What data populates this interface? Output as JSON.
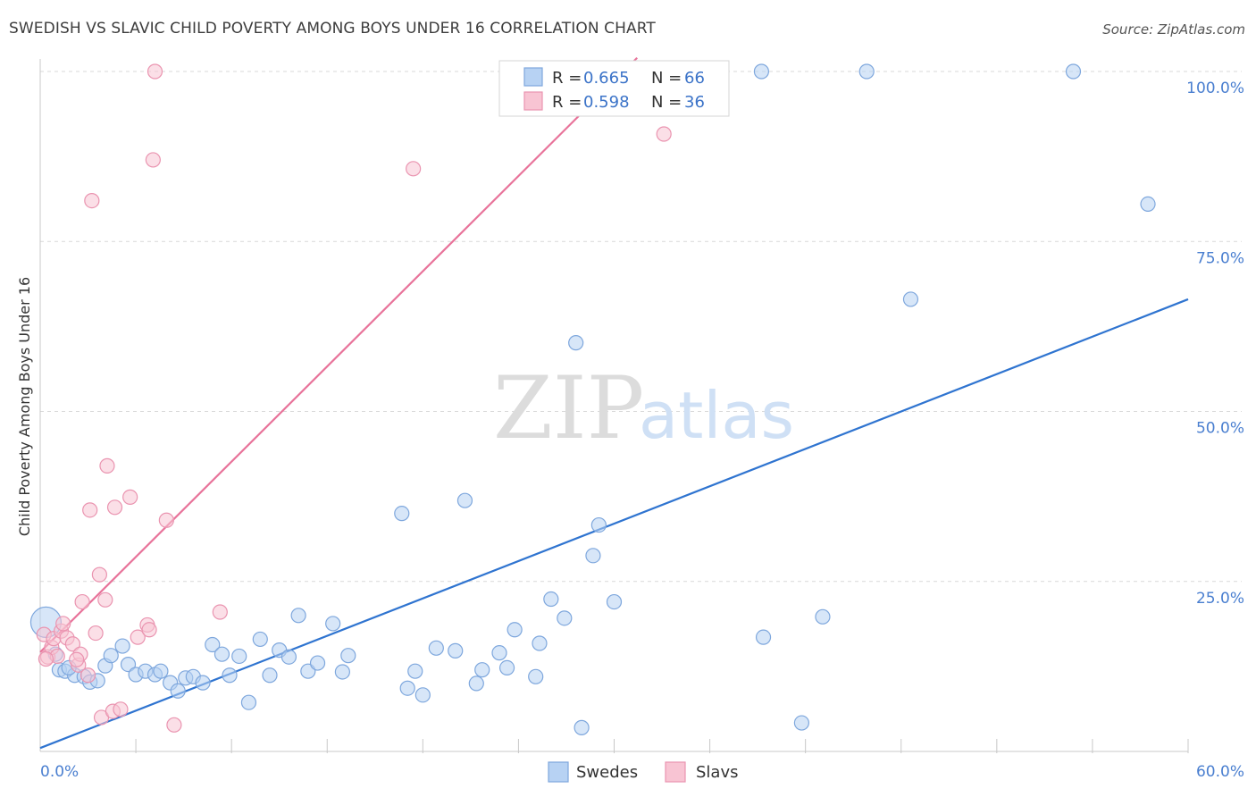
{
  "title": "SWEDISH VS SLAVIC CHILD POVERTY AMONG BOYS UNDER 16 CORRELATION CHART",
  "source": "Source: ZipAtlas.com",
  "watermark": {
    "zip": "ZIP",
    "atlas": "atlas"
  },
  "legend_top": [
    {
      "r_label": "R = ",
      "r_value": "0.665",
      "n_label": "N = ",
      "n_value": "66"
    },
    {
      "r_label": "R = ",
      "r_value": "0.598",
      "n_label": "N = ",
      "n_value": "36"
    }
  ],
  "legend_bottom": [
    "Swedes",
    "Slavs"
  ],
  "colors": {
    "swedes_fill": "#b7d2f3",
    "swedes_stroke": "#7ea7dd",
    "swedes_line": "#2f74d0",
    "slavs_fill": "#f8c4d3",
    "slavs_stroke": "#ea94b0",
    "slavs_line": "#e8739a",
    "axis_label": "#4a7fd0",
    "grid": "#d9d9d9"
  },
  "chart_data": {
    "type": "scatter",
    "title": "SWEDISH VS SLAVIC CHILD POVERTY AMONG BOYS UNDER 16 CORRELATION CHART",
    "xlabel": "",
    "ylabel": "Child Poverty Among Boys Under 16",
    "xlim": [
      0,
      60
    ],
    "ylim": [
      0,
      100
    ],
    "x_tick_labels": [
      "0.0%",
      "60.0%"
    ],
    "y_tick_labels": [
      "25.0%",
      "50.0%",
      "75.0%",
      "100.0%"
    ],
    "y_ticks": [
      25,
      50,
      75,
      100
    ],
    "grid": true,
    "legend_position": "top-center",
    "series": [
      {
        "name": "Swedes",
        "r": 0.665,
        "n": 66,
        "trend": {
          "x": [
            0,
            60
          ],
          "y": [
            0.5,
            66.5
          ]
        },
        "points": [
          {
            "x": 0.3,
            "y": 19.0,
            "big": true
          },
          {
            "x": 0.8,
            "y": 14.3
          },
          {
            "x": 1.0,
            "y": 12.0
          },
          {
            "x": 1.3,
            "y": 11.8
          },
          {
            "x": 1.8,
            "y": 11.2
          },
          {
            "x": 2.3,
            "y": 11.0
          },
          {
            "x": 2.6,
            "y": 10.2
          },
          {
            "x": 3.0,
            "y": 10.4
          },
          {
            "x": 3.4,
            "y": 12.6
          },
          {
            "x": 3.7,
            "y": 14.1
          },
          {
            "x": 4.3,
            "y": 15.5
          },
          {
            "x": 4.6,
            "y": 12.8
          },
          {
            "x": 5.0,
            "y": 11.3
          },
          {
            "x": 5.5,
            "y": 11.8
          },
          {
            "x": 6.0,
            "y": 11.3
          },
          {
            "x": 6.3,
            "y": 11.8
          },
          {
            "x": 6.8,
            "y": 10.1
          },
          {
            "x": 7.2,
            "y": 8.9
          },
          {
            "x": 7.6,
            "y": 10.8
          },
          {
            "x": 8.0,
            "y": 11.0
          },
          {
            "x": 8.5,
            "y": 10.1
          },
          {
            "x": 9.0,
            "y": 15.7
          },
          {
            "x": 9.5,
            "y": 14.3
          },
          {
            "x": 9.9,
            "y": 11.2
          },
          {
            "x": 10.4,
            "y": 14.0
          },
          {
            "x": 10.9,
            "y": 7.2
          },
          {
            "x": 11.5,
            "y": 16.5
          },
          {
            "x": 12.0,
            "y": 11.2
          },
          {
            "x": 12.5,
            "y": 14.9
          },
          {
            "x": 13.0,
            "y": 13.9
          },
          {
            "x": 13.5,
            "y": 20.0
          },
          {
            "x": 14.0,
            "y": 11.8
          },
          {
            "x": 14.5,
            "y": 13.0
          },
          {
            "x": 15.3,
            "y": 18.8
          },
          {
            "x": 15.8,
            "y": 11.7
          },
          {
            "x": 16.1,
            "y": 14.1
          },
          {
            "x": 18.9,
            "y": 35.0
          },
          {
            "x": 19.2,
            "y": 9.3
          },
          {
            "x": 19.6,
            "y": 11.8
          },
          {
            "x": 20.0,
            "y": 8.3
          },
          {
            "x": 20.7,
            "y": 15.2
          },
          {
            "x": 21.7,
            "y": 14.8
          },
          {
            "x": 22.2,
            "y": 36.9
          },
          {
            "x": 22.8,
            "y": 10.0
          },
          {
            "x": 23.1,
            "y": 12.0
          },
          {
            "x": 24.0,
            "y": 14.5
          },
          {
            "x": 24.4,
            "y": 12.3
          },
          {
            "x": 24.8,
            "y": 17.9
          },
          {
            "x": 25.9,
            "y": 11.0
          },
          {
            "x": 26.1,
            "y": 15.9
          },
          {
            "x": 26.7,
            "y": 22.4
          },
          {
            "x": 27.4,
            "y": 19.6
          },
          {
            "x": 28.0,
            "y": 60.1
          },
          {
            "x": 28.3,
            "y": 3.5
          },
          {
            "x": 28.9,
            "y": 28.8
          },
          {
            "x": 29.2,
            "y": 33.3
          },
          {
            "x": 30.0,
            "y": 22.0
          },
          {
            "x": 37.7,
            "y": 100.0
          },
          {
            "x": 37.8,
            "y": 16.8
          },
          {
            "x": 39.8,
            "y": 4.2
          },
          {
            "x": 40.9,
            "y": 19.8
          },
          {
            "x": 43.2,
            "y": 100.0
          },
          {
            "x": 45.5,
            "y": 66.5
          },
          {
            "x": 54.0,
            "y": 100.0
          },
          {
            "x": 57.9,
            "y": 80.5
          },
          {
            "x": 1.5,
            "y": 12.3
          }
        ]
      },
      {
        "name": "Slavs",
        "r": 0.598,
        "n": 36,
        "trend": {
          "x": [
            0,
            31.2
          ],
          "y": [
            14.6,
            102.0
          ]
        },
        "points": [
          {
            "x": 0.2,
            "y": 17.2
          },
          {
            "x": 0.4,
            "y": 13.9
          },
          {
            "x": 0.6,
            "y": 15.3
          },
          {
            "x": 0.7,
            "y": 16.6
          },
          {
            "x": 0.9,
            "y": 14.0
          },
          {
            "x": 1.1,
            "y": 17.7
          },
          {
            "x": 1.2,
            "y": 18.8
          },
          {
            "x": 1.4,
            "y": 16.7
          },
          {
            "x": 1.7,
            "y": 15.8
          },
          {
            "x": 2.0,
            "y": 12.7
          },
          {
            "x": 2.1,
            "y": 14.3
          },
          {
            "x": 2.2,
            "y": 22.0
          },
          {
            "x": 2.5,
            "y": 11.2
          },
          {
            "x": 2.6,
            "y": 35.5
          },
          {
            "x": 2.7,
            "y": 81.0
          },
          {
            "x": 2.9,
            "y": 17.4
          },
          {
            "x": 3.1,
            "y": 26.0
          },
          {
            "x": 3.2,
            "y": 5.0
          },
          {
            "x": 3.4,
            "y": 22.3
          },
          {
            "x": 3.5,
            "y": 42.0
          },
          {
            "x": 3.8,
            "y": 5.9
          },
          {
            "x": 3.9,
            "y": 35.9
          },
          {
            "x": 4.2,
            "y": 6.2
          },
          {
            "x": 4.7,
            "y": 37.4
          },
          {
            "x": 5.1,
            "y": 16.8
          },
          {
            "x": 5.6,
            "y": 18.6
          },
          {
            "x": 5.7,
            "y": 17.9
          },
          {
            "x": 5.9,
            "y": 87.0
          },
          {
            "x": 6.0,
            "y": 100.0
          },
          {
            "x": 6.6,
            "y": 34.0
          },
          {
            "x": 7.0,
            "y": 3.9
          },
          {
            "x": 9.4,
            "y": 20.5
          },
          {
            "x": 19.5,
            "y": 85.7
          },
          {
            "x": 32.6,
            "y": 90.8
          },
          {
            "x": 1.9,
            "y": 13.5
          },
          {
            "x": 0.3,
            "y": 13.6
          }
        ]
      }
    ]
  }
}
